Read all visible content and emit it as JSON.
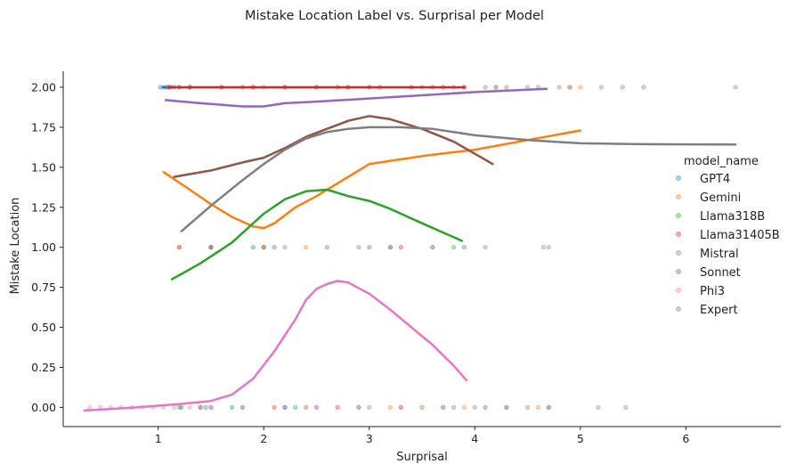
{
  "chart_data": {
    "type": "scatter",
    "title": "Mistake Location Label vs. Surprisal per Model",
    "xlabel": "Surprisal",
    "ylabel": "Mistake Location",
    "xlim": [
      0.1,
      6.9
    ],
    "ylim": [
      -0.12,
      2.1
    ],
    "xticks": [
      1,
      2,
      3,
      4,
      5,
      6
    ],
    "yticks": [
      0.0,
      0.25,
      0.5,
      0.75,
      1.0,
      1.25,
      1.5,
      1.75,
      2.0
    ],
    "xtick_labels": [
      "1",
      "2",
      "3",
      "4",
      "5",
      "6"
    ],
    "ytick_labels": [
      "0.00",
      "0.25",
      "0.50",
      "0.75",
      "1.00",
      "1.25",
      "1.50",
      "1.75",
      "2.00"
    ],
    "grid": false,
    "legend_title": "model_name",
    "legend_position": "right",
    "series": [
      {
        "name": "GPT4",
        "color": "#1f77b4",
        "points": [
          [
            1.02,
            2
          ],
          [
            1.05,
            2
          ],
          [
            1.08,
            2
          ],
          [
            1.1,
            2
          ],
          [
            1.12,
            2
          ],
          [
            1.15,
            2
          ],
          [
            1.2,
            2
          ],
          [
            1.3,
            2
          ],
          [
            1.22,
            0
          ],
          [
            1.45,
            0
          ],
          [
            1.7,
            0
          ],
          [
            1.9,
            1
          ],
          [
            2.2,
            0
          ]
        ],
        "smooth": [
          [
            1.05,
            2.0
          ],
          [
            1.07,
            2.0
          ]
        ]
      },
      {
        "name": "Gemini",
        "color": "#ff7f0e",
        "points": [
          [
            1.2,
            1
          ],
          [
            1.5,
            1
          ],
          [
            1.9,
            2
          ],
          [
            2.1,
            0
          ],
          [
            2.4,
            1
          ],
          [
            2.8,
            2
          ],
          [
            3.2,
            0
          ],
          [
            3.6,
            1
          ],
          [
            3.9,
            0
          ],
          [
            4.2,
            2
          ],
          [
            4.6,
            0
          ],
          [
            4.9,
            2
          ],
          [
            5.0,
            2
          ]
        ],
        "smooth": [
          [
            1.05,
            1.47
          ],
          [
            1.3,
            1.36
          ],
          [
            1.5,
            1.27
          ],
          [
            1.7,
            1.19
          ],
          [
            1.9,
            1.13
          ],
          [
            2.0,
            1.12
          ],
          [
            2.1,
            1.15
          ],
          [
            2.3,
            1.25
          ],
          [
            2.5,
            1.32
          ],
          [
            2.7,
            1.4
          ],
          [
            2.9,
            1.48
          ],
          [
            3.0,
            1.52
          ],
          [
            3.2,
            1.54
          ],
          [
            3.5,
            1.57
          ],
          [
            4.0,
            1.61
          ],
          [
            4.5,
            1.67
          ],
          [
            5.0,
            1.73
          ]
        ]
      },
      {
        "name": "Llama318B",
        "color": "#2ca02c",
        "points": [
          [
            1.2,
            0
          ],
          [
            1.5,
            1
          ],
          [
            1.8,
            0
          ],
          [
            2.0,
            1
          ],
          [
            2.3,
            0
          ],
          [
            2.6,
            1
          ],
          [
            2.9,
            0
          ],
          [
            3.2,
            1
          ],
          [
            3.5,
            0
          ],
          [
            3.8,
            1
          ],
          [
            3.7,
            0
          ]
        ],
        "smooth": [
          [
            1.13,
            0.8
          ],
          [
            1.4,
            0.9
          ],
          [
            1.7,
            1.03
          ],
          [
            1.9,
            1.15
          ],
          [
            2.0,
            1.21
          ],
          [
            2.2,
            1.3
          ],
          [
            2.4,
            1.35
          ],
          [
            2.6,
            1.36
          ],
          [
            2.8,
            1.32
          ],
          [
            3.0,
            1.29
          ],
          [
            3.2,
            1.24
          ],
          [
            3.5,
            1.15
          ],
          [
            3.88,
            1.04
          ]
        ]
      },
      {
        "name": "Llama31405B",
        "color": "#d62728",
        "points": [
          [
            1.1,
            2
          ],
          [
            1.3,
            2
          ],
          [
            1.6,
            2
          ],
          [
            1.9,
            2
          ],
          [
            2.2,
            2
          ],
          [
            2.5,
            2
          ],
          [
            2.8,
            2
          ],
          [
            3.1,
            2
          ],
          [
            3.4,
            2
          ],
          [
            3.7,
            2
          ],
          [
            3.9,
            2
          ],
          [
            1.4,
            0
          ],
          [
            2.0,
            1
          ],
          [
            2.7,
            0
          ],
          [
            3.3,
            1
          ]
        ],
        "smooth": [
          [
            1.1,
            2.0
          ],
          [
            3.9,
            2.0
          ]
        ]
      },
      {
        "name": "Mistral",
        "color": "#9467bd",
        "points": [
          [
            1.3,
            2
          ],
          [
            2.2,
            2
          ],
          [
            3.0,
            2
          ],
          [
            3.8,
            2
          ],
          [
            4.2,
            2
          ],
          [
            4.7,
            0
          ],
          [
            1.5,
            1
          ],
          [
            2.5,
            0
          ],
          [
            3.2,
            1
          ],
          [
            4.3,
            0
          ]
        ],
        "smooth": [
          [
            1.07,
            1.92
          ],
          [
            1.4,
            1.9
          ],
          [
            1.8,
            1.88
          ],
          [
            2.0,
            1.88
          ],
          [
            2.2,
            1.9
          ],
          [
            2.5,
            1.91
          ],
          [
            3.0,
            1.93
          ],
          [
            3.5,
            1.95
          ],
          [
            4.0,
            1.97
          ],
          [
            4.68,
            1.99
          ]
        ]
      },
      {
        "name": "Sonnet",
        "color": "#8c564b",
        "points": [
          [
            1.2,
            1
          ],
          [
            1.5,
            0
          ],
          [
            1.8,
            2
          ],
          [
            2.1,
            1
          ],
          [
            2.4,
            0
          ],
          [
            2.7,
            2
          ],
          [
            3.0,
            1
          ],
          [
            3.3,
            0
          ],
          [
            3.6,
            2
          ],
          [
            3.9,
            1
          ],
          [
            4.1,
            0
          ]
        ],
        "smooth": [
          [
            1.15,
            1.44
          ],
          [
            1.5,
            1.48
          ],
          [
            1.8,
            1.53
          ],
          [
            2.0,
            1.56
          ],
          [
            2.2,
            1.62
          ],
          [
            2.4,
            1.69
          ],
          [
            2.6,
            1.74
          ],
          [
            2.8,
            1.79
          ],
          [
            3.0,
            1.82
          ],
          [
            3.2,
            1.8
          ],
          [
            3.5,
            1.74
          ],
          [
            3.8,
            1.66
          ],
          [
            4.17,
            1.52
          ]
        ]
      },
      {
        "name": "Phi3",
        "color": "#e377c2",
        "points": [
          [
            0.35,
            0
          ],
          [
            0.45,
            0
          ],
          [
            0.55,
            0
          ],
          [
            0.65,
            0
          ],
          [
            0.75,
            0
          ],
          [
            0.85,
            0
          ],
          [
            0.95,
            0
          ],
          [
            1.05,
            0
          ],
          [
            1.15,
            0
          ],
          [
            1.3,
            0
          ],
          [
            1.5,
            0
          ],
          [
            1.8,
            0
          ],
          [
            2.1,
            0
          ],
          [
            2.5,
            0
          ],
          [
            2.9,
            0
          ],
          [
            3.3,
            0
          ],
          [
            3.7,
            0
          ]
        ],
        "smooth": [
          [
            0.3,
            -0.02
          ],
          [
            0.8,
            0.0
          ],
          [
            1.2,
            0.02
          ],
          [
            1.5,
            0.04
          ],
          [
            1.7,
            0.08
          ],
          [
            1.9,
            0.18
          ],
          [
            2.1,
            0.35
          ],
          [
            2.3,
            0.55
          ],
          [
            2.4,
            0.67
          ],
          [
            2.5,
            0.74
          ],
          [
            2.6,
            0.77
          ],
          [
            2.7,
            0.79
          ],
          [
            2.8,
            0.78
          ],
          [
            3.0,
            0.71
          ],
          [
            3.2,
            0.61
          ],
          [
            3.4,
            0.5
          ],
          [
            3.6,
            0.39
          ],
          [
            3.8,
            0.26
          ],
          [
            3.92,
            0.17
          ]
        ]
      },
      {
        "name": "Expert",
        "color": "#7f7f7f",
        "points": [
          [
            1.2,
            2
          ],
          [
            1.6,
            2
          ],
          [
            2.0,
            2
          ],
          [
            2.5,
            2
          ],
          [
            3.0,
            2
          ],
          [
            3.5,
            2
          ],
          [
            3.9,
            2
          ],
          [
            4.1,
            2
          ],
          [
            4.3,
            2
          ],
          [
            4.5,
            2
          ],
          [
            4.6,
            2
          ],
          [
            4.8,
            2
          ],
          [
            4.9,
            2
          ],
          [
            5.2,
            2
          ],
          [
            5.4,
            2
          ],
          [
            5.6,
            2
          ],
          [
            6.47,
            2
          ],
          [
            1.5,
            1
          ],
          [
            2.2,
            1
          ],
          [
            2.9,
            1
          ],
          [
            3.6,
            1
          ],
          [
            4.1,
            1
          ],
          [
            4.65,
            1
          ],
          [
            4.7,
            1
          ],
          [
            1.4,
            0
          ],
          [
            2.2,
            0
          ],
          [
            3.0,
            0
          ],
          [
            3.8,
            0
          ],
          [
            4.0,
            0
          ],
          [
            4.3,
            0
          ],
          [
            4.5,
            0
          ],
          [
            4.7,
            0
          ],
          [
            5.17,
            0
          ],
          [
            5.43,
            0
          ]
        ],
        "smooth": [
          [
            1.22,
            1.1
          ],
          [
            1.5,
            1.26
          ],
          [
            1.8,
            1.42
          ],
          [
            2.0,
            1.52
          ],
          [
            2.2,
            1.61
          ],
          [
            2.4,
            1.68
          ],
          [
            2.6,
            1.72
          ],
          [
            2.8,
            1.74
          ],
          [
            3.0,
            1.75
          ],
          [
            3.3,
            1.75
          ],
          [
            3.6,
            1.74
          ],
          [
            4.0,
            1.7
          ],
          [
            4.5,
            1.67
          ],
          [
            5.0,
            1.65
          ],
          [
            5.5,
            1.645
          ],
          [
            6.0,
            1.643
          ],
          [
            6.47,
            1.642
          ]
        ]
      }
    ]
  }
}
